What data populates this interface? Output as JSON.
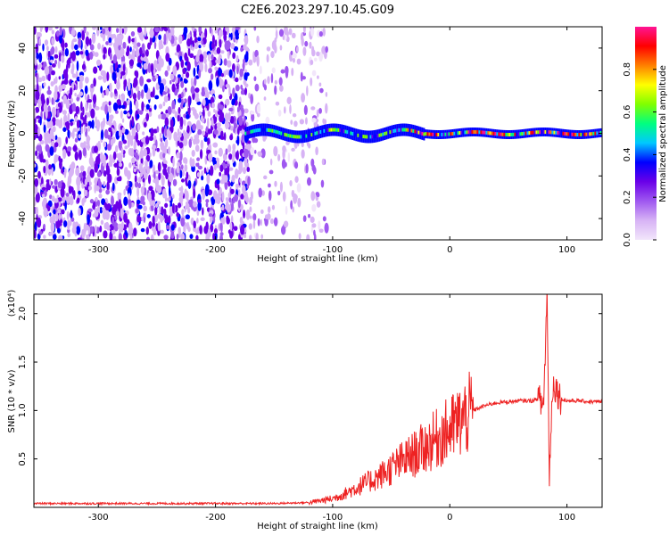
{
  "title": "C2E6.2023.297.10.45.G09",
  "chart_data": [
    {
      "type": "heatmap",
      "xlabel": "Height of straight line (km)",
      "ylabel": "Frequency (Hz)",
      "xlim": [
        -355,
        130
      ],
      "ylim": [
        -50,
        50
      ],
      "xticks": [
        -300,
        -200,
        -100,
        0,
        100
      ],
      "yticks": [
        -40,
        -20,
        0,
        20,
        40
      ],
      "colorbar": {
        "label": "Normalized spectral amplitude",
        "range": [
          0,
          1
        ],
        "ticks": [
          0.0,
          0.2,
          0.4,
          0.6,
          0.8
        ],
        "colormap": [
          "#f2e6fb",
          "#d7b3f5",
          "#9f58f0",
          "#6a00e8",
          "#0000ff",
          "#00c8ff",
          "#00ff80",
          "#80ff00",
          "#ffff00",
          "#ff8000",
          "#ff0000",
          "#ff1493"
        ]
      },
      "regions": [
        {
          "x": [
            -355,
            -170
          ],
          "y": [
            -50,
            50
          ],
          "amplitude": 0.12,
          "description": "broadband noise"
        },
        {
          "x": [
            -170,
            -105
          ],
          "y": [
            -50,
            50
          ],
          "amplitude": 0.05,
          "description": "weak noise"
        },
        {
          "x": [
            -175,
            130
          ],
          "y": [
            -3,
            3
          ],
          "amplitude": 0.6,
          "description": "signal band near 0 Hz"
        }
      ]
    },
    {
      "type": "line",
      "xlabel": "Height of straight line (km)",
      "ylabel": "SNR (10 * v/v)",
      "y_multiplier": "(x10⁴)",
      "xlim": [
        -355,
        130
      ],
      "ylim": [
        0,
        2.2
      ],
      "xticks": [
        -300,
        -200,
        -100,
        0,
        100
      ],
      "yticks": [
        0.5,
        1.0,
        1.5,
        2.0
      ],
      "grid": false,
      "color": "#ee2222",
      "x": [
        -355,
        -300,
        -250,
        -200,
        -150,
        -120,
        -100,
        -90,
        -80,
        -70,
        -60,
        -50,
        -40,
        -30,
        -20,
        -10,
        0,
        10,
        20,
        30,
        40,
        50,
        60,
        70,
        75,
        80,
        83,
        85,
        88,
        95,
        100,
        110,
        120,
        130
      ],
      "y": [
        0.04,
        0.04,
        0.04,
        0.04,
        0.04,
        0.05,
        0.09,
        0.14,
        0.2,
        0.26,
        0.32,
        0.4,
        0.48,
        0.55,
        0.63,
        0.72,
        0.8,
        0.9,
        1.0,
        1.05,
        1.08,
        1.09,
        1.1,
        1.1,
        1.12,
        1.05,
        2.2,
        0.35,
        1.3,
        1.12,
        1.1,
        1.1,
        1.09,
        1.09
      ]
    }
  ]
}
